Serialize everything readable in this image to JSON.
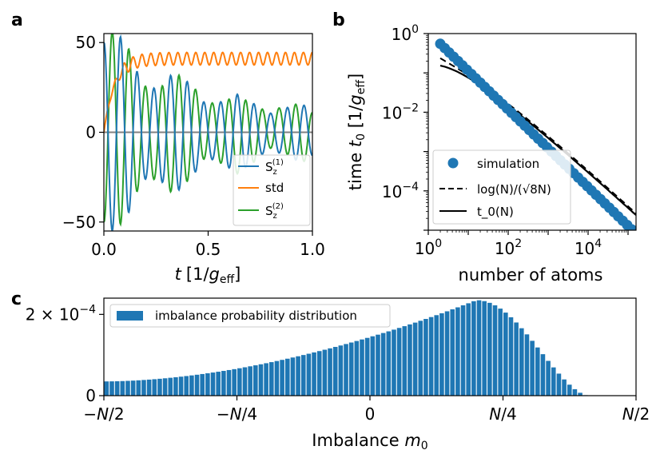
{
  "panels": {
    "a": "a",
    "b": "b",
    "c": "c"
  },
  "chart_data": [
    {
      "id": "a",
      "type": "line",
      "xlabel": "t [1/g_eff]",
      "xlabel_main": "t",
      "xlabel_unit_pre": "[1/",
      "xlabel_unit_g": "g",
      "xlabel_unit_sub": "eff",
      "xlabel_unit_post": "]",
      "xlim": [
        0,
        1
      ],
      "ylim": [
        -55,
        55
      ],
      "xticks": [
        {
          "v": 0,
          "label": "0.0"
        },
        {
          "v": 0.5,
          "label": "0.5"
        },
        {
          "v": 1,
          "label": "1.0"
        }
      ],
      "yticks": [
        {
          "v": 50,
          "label": "50"
        },
        {
          "v": 0,
          "label": "0"
        },
        {
          "v": -50,
          "label": "−50"
        }
      ],
      "legend_position": "lower-right",
      "legend": [
        {
          "name": "S_z^(1)",
          "base": "S",
          "sub": "z",
          "sup": "(1)",
          "color": "#1f77b4"
        },
        {
          "name": "std",
          "base": "std",
          "sub": "",
          "sup": "",
          "color": "#ff7f0e"
        },
        {
          "name": "S_z^(2)",
          "base": "S",
          "sub": "z",
          "sup": "(2)",
          "color": "#2ca02c"
        }
      ],
      "series_model": {
        "amplitude_start": 50,
        "amplitude_end": 8,
        "decay": 2.4,
        "period": 0.08,
        "std_mean": 41,
        "std_ripple": 3.5,
        "zero_line_color": "#808080"
      }
    },
    {
      "id": "b",
      "type": "scatter",
      "xlabel": "number of atoms",
      "ylabel_pre": "time ",
      "ylabel_t": "t",
      "ylabel_t_sub": "0",
      "ylabel_unit_pre": " [1/",
      "ylabel_unit_g": "g",
      "ylabel_unit_sub": "eff",
      "ylabel_unit_post": "]",
      "xscale": "log",
      "yscale": "log",
      "xlim_log10": [
        0,
        5.2
      ],
      "ylim_log10": [
        -5,
        0
      ],
      "xticks": [
        {
          "exp": 0,
          "base": "10",
          "sup": "0"
        },
        {
          "exp": 2,
          "base": "10",
          "sup": "2"
        },
        {
          "exp": 4,
          "base": "10",
          "sup": "4"
        }
      ],
      "yticks": [
        {
          "exp": 0,
          "base": "10",
          "sup": "0"
        },
        {
          "exp": -2,
          "base": "10",
          "sup": "−2"
        },
        {
          "exp": -4,
          "base": "10",
          "sup": "−4"
        }
      ],
      "legend_position": "lower-left",
      "legend": [
        {
          "name": "simulation",
          "label": "simulation",
          "style": "marker",
          "color": "#1f77b4"
        },
        {
          "name": "log(N)/(sqrt(8)N)",
          "label": "log(N)/(√8N)",
          "style": "dashed",
          "color": "#000000"
        },
        {
          "name": "t_0(N)",
          "label": "t_0(N)",
          "style": "solid",
          "color": "#000000"
        }
      ],
      "simulation": {
        "log10N_start": 0.3,
        "log10N_end": 5.2,
        "count": 45,
        "log10t_at_start": -0.26,
        "slope": -0.985
      },
      "t0_curve": {
        "log10N_start": 0.3,
        "log10N_end": 5.2,
        "prefactor": 1.6
      },
      "approx_curve": {
        "log10N_start": 0.3,
        "log10N_end": 5.2,
        "prefactor": 0.3536
      }
    },
    {
      "id": "c",
      "type": "bar",
      "title": "",
      "xlabel": "Imbalance m_0",
      "xlabel_pre": "Imbalance ",
      "xlabel_m": "m",
      "xlabel_sub": "0",
      "xlim": [
        -0.5,
        0.5
      ],
      "ylim": [
        0,
        0.00024
      ],
      "xticks": [
        {
          "v": -0.5,
          "label": "−N/2"
        },
        {
          "v": -0.25,
          "label": "−N/4"
        },
        {
          "v": 0,
          "label": "0"
        },
        {
          "v": 0.25,
          "label": "N/4"
        },
        {
          "v": 0.5,
          "label": "N/2"
        }
      ],
      "yticks": [
        {
          "v": 0.0002,
          "pre": "2 × 10",
          "sup": "−4"
        },
        {
          "v": 0,
          "pre": "0",
          "sup": ""
        }
      ],
      "legend_position": "upper-left",
      "legend": [
        {
          "name": "imbalance probability distribution",
          "label": "imbalance probability distribution",
          "color": "#1f77b4"
        }
      ],
      "bar_color": "#1f77b4",
      "distribution_model": {
        "bins": 100,
        "peak_x": 0.2,
        "peak_value": 0.000235,
        "value_at_left": 3.5e-05,
        "cutoff_x": 0.41
      }
    }
  ]
}
